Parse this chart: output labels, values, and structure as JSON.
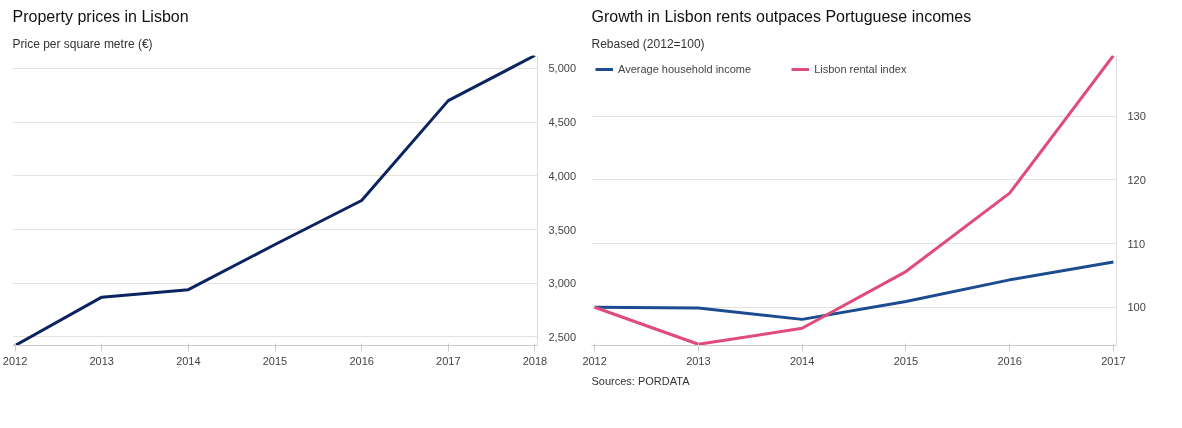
{
  "chart_data": [
    {
      "type": "line",
      "title": "Property prices in Lisbon",
      "subtitle": "Price per square metre (€)",
      "x": [
        2012,
        2013,
        2014,
        2015,
        2016,
        2017,
        2018
      ],
      "series": [
        {
          "color": "#0b2461",
          "values": [
            2420,
            2870,
            2940,
            3360,
            3770,
            4700,
            5120
          ]
        }
      ],
      "xlim": [
        2011.97,
        2018.03
      ],
      "xticks": [
        2012,
        2013,
        2014,
        2015,
        2016,
        2017,
        2018
      ],
      "ylim": [
        2420,
        5120
      ],
      "yticks": [
        {
          "value": 2500,
          "label": "2,500"
        },
        {
          "value": 3000,
          "label": "3,000"
        },
        {
          "value": 3500,
          "label": "3,500"
        },
        {
          "value": 4000,
          "label": "4,000"
        },
        {
          "value": 4500,
          "label": "4,500"
        },
        {
          "value": 5000,
          "label": "5,000"
        }
      ],
      "grid": "y",
      "line_style": "solid"
    },
    {
      "type": "line",
      "title": "Growth in Lisbon rents outpaces Portuguese incomes",
      "subtitle": "Rebased (2012=100)",
      "x": [
        2012,
        2013,
        2014,
        2015,
        2016,
        2017
      ],
      "series": [
        {
          "name": "Average household income",
          "color": "#1d4b8f",
          "values": [
            100,
            99.9,
            98.1,
            100.9,
            104.3,
            107.1
          ]
        },
        {
          "name": "Lisbon rental index",
          "color": "#e04a7c",
          "values": [
            100,
            94.2,
            96.7,
            105.6,
            117.9,
            139.5
          ]
        }
      ],
      "xlim": [
        2011.97,
        2017.03
      ],
      "xticks": [
        2012,
        2013,
        2014,
        2015,
        2016,
        2017
      ],
      "ylim": [
        94,
        139.5
      ],
      "yticks": [
        100,
        110,
        120,
        130
      ],
      "grid": "y",
      "legend": "top left",
      "line_style": "solid",
      "annotations": [
        "Sources: PORDATA"
      ]
    }
  ]
}
